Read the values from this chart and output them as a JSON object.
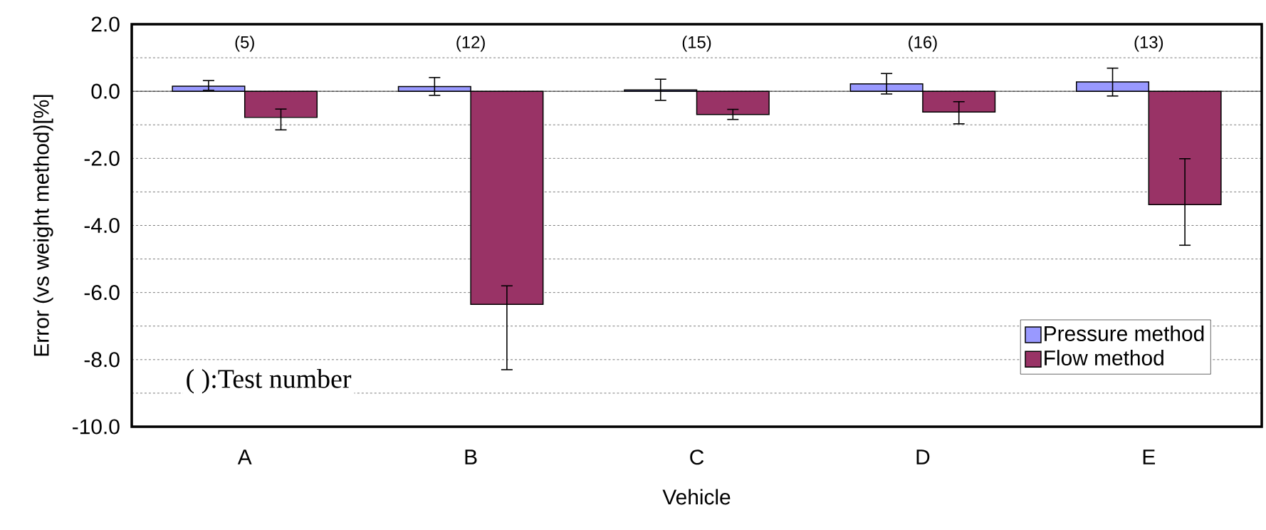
{
  "chart_data": {
    "type": "bar",
    "xlabel": "Vehicle",
    "ylabel": "Error (vs weight method)[%]",
    "categories": [
      "A",
      "B",
      "C",
      "D",
      "E"
    ],
    "series": [
      {
        "name": "Pressure method",
        "color": "#9999ff",
        "values": [
          0.15,
          0.14,
          0.04,
          0.22,
          0.28
        ],
        "errors": [
          [
            0.03,
            0.32
          ],
          [
            -0.12,
            0.41
          ],
          [
            -0.27,
            0.36
          ],
          [
            -0.08,
            0.53
          ],
          [
            -0.14,
            0.69
          ]
        ]
      },
      {
        "name": "Flow method",
        "color": "#993366",
        "values": [
          -0.78,
          -6.35,
          -0.69,
          -0.62,
          -3.38
        ],
        "errors": [
          [
            -1.15,
            -0.53
          ],
          [
            -8.3,
            -5.8
          ],
          [
            -0.84,
            -0.54
          ],
          [
            -0.97,
            -0.31
          ],
          [
            -4.59,
            -2.01
          ]
        ]
      }
    ],
    "ylim": [
      -10,
      2
    ],
    "yticks": [
      {
        "value": 2,
        "label": "2.0"
      },
      {
        "value": 0,
        "label": "0.0"
      },
      {
        "value": -2,
        "label": "-2.0"
      },
      {
        "value": -4,
        "label": "-4.0"
      },
      {
        "value": -6,
        "label": "-6.0"
      },
      {
        "value": -8,
        "label": "-8.0"
      },
      {
        "value": -10,
        "label": "-10.0"
      }
    ],
    "grid": "y",
    "legend": "bottom right",
    "annotations": [
      "(5)",
      "(12)",
      "(15)",
      "(16)",
      "(13)",
      "( ):Test number"
    ]
  }
}
